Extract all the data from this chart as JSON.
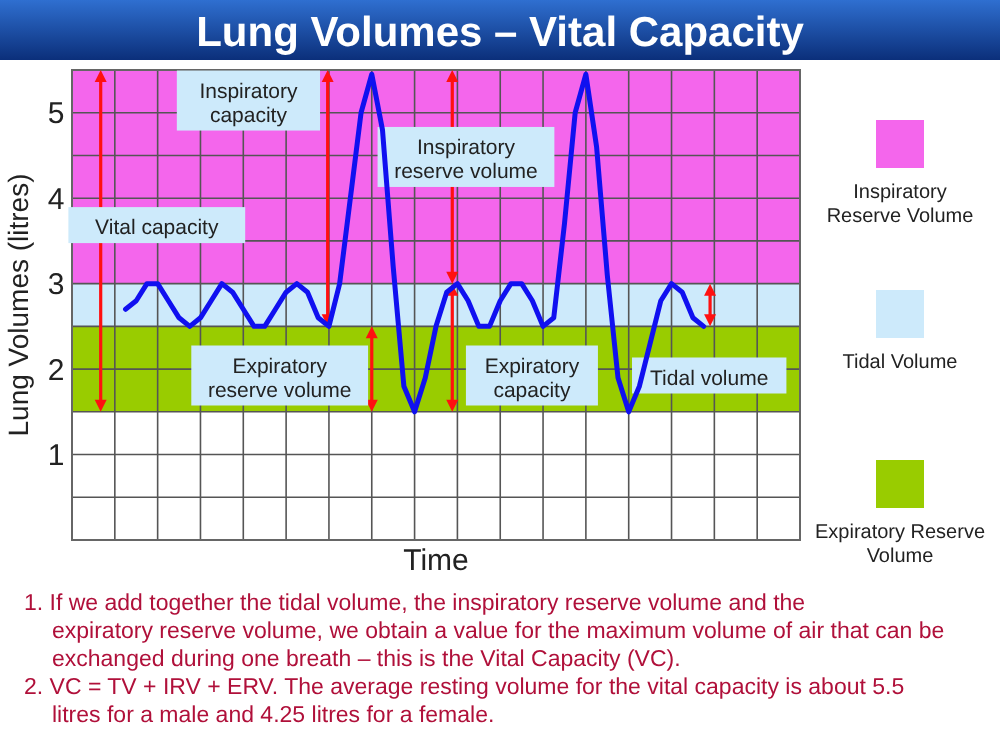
{
  "chart_data": {
    "type": "line",
    "title": "Lung Volumes – Vital Capacity",
    "xlabel": "Time",
    "ylabel": "Lung Volumes (litres)",
    "categories": [
      null,
      null,
      null,
      null,
      null,
      null,
      null,
      null,
      null,
      null,
      null,
      null,
      null,
      null,
      null,
      null,
      null,
      null,
      null,
      null,
      null,
      null,
      null,
      null,
      null,
      null,
      null,
      null,
      null,
      null,
      null,
      null,
      null,
      null,
      null,
      null,
      null,
      null,
      null,
      null,
      null,
      null,
      null,
      null,
      null,
      null,
      null,
      null,
      null,
      null,
      null,
      null,
      null,
      null,
      null,
      null,
      null,
      null,
      null,
      null,
      null,
      null,
      null,
      null,
      null,
      null,
      null,
      null,
      null
    ],
    "ylim": [
      0,
      5.5
    ],
    "yticks": [
      {
        "value": 0.5,
        "label": null
      },
      1,
      {
        "value": 1.5,
        "label": null
      },
      2,
      {
        "value": 2.5,
        "label": null
      },
      3,
      {
        "value": 3.5,
        "label": null
      },
      4,
      {
        "value": 4.5,
        "label": null
      },
      5
    ],
    "grid": true,
    "legend": "right",
    "marker": "none",
    "line_style": "solid",
    "series": [
      {
        "color": "#1010f0",
        "values": [
          null,
          null,
          null,
          null,
          null,
          2.7,
          2.8,
          3.0,
          3.0,
          2.8,
          2.6,
          2.5,
          2.6,
          2.8,
          3.0,
          2.9,
          2.7,
          2.5,
          2.5,
          2.7,
          2.9,
          3.0,
          2.9,
          2.6,
          2.5,
          3.0,
          4.0,
          5.0,
          5.45,
          4.8,
          3.2,
          1.8,
          1.5,
          1.9,
          2.5,
          2.9,
          3.0,
          2.8,
          2.5,
          2.5,
          2.8,
          3.0,
          3.0,
          2.8,
          2.5,
          2.6,
          3.7,
          5.0,
          5.45,
          4.6,
          3.1,
          1.9,
          1.5,
          1.8,
          2.3,
          2.8,
          3.0,
          2.9,
          2.6,
          2.5,
          null,
          null,
          null,
          null,
          null,
          null,
          null,
          null,
          null
        ]
      }
    ],
    "bands": [
      {
        "axis": "y",
        "from": 3,
        "to": 5.5,
        "label": "Inspiratory Reserve Volume",
        "color": "#f466ec"
      },
      {
        "axis": "y",
        "from": 2.5,
        "to": 3,
        "label": "Tidal Volume",
        "color": "#cdeafb"
      },
      {
        "axis": "y",
        "from": 1.5,
        "to": 2.5,
        "label": "Expiratory Reserve Volume",
        "color": "#99cc00"
      }
    ],
    "annotations": [
      "Vital capacity",
      "Inspiratory capacity",
      "Inspiratory reserve volume",
      "Expiratory reserve volume",
      "Expiratory capacity",
      "Tidal volume",
      "1. If we add together the tidal volume, the inspiratory reserve volume and the expiratory reserve volume, we obtain a value for the maximum volume of air that can be exchanged during one breath – this is the Vital Capacity (VC).",
      "2. VC = TV + IRV + ERV. The average resting volume for the vital capacity is about 5.5 litres for a male and 4.25 litres for a female."
    ]
  }
}
